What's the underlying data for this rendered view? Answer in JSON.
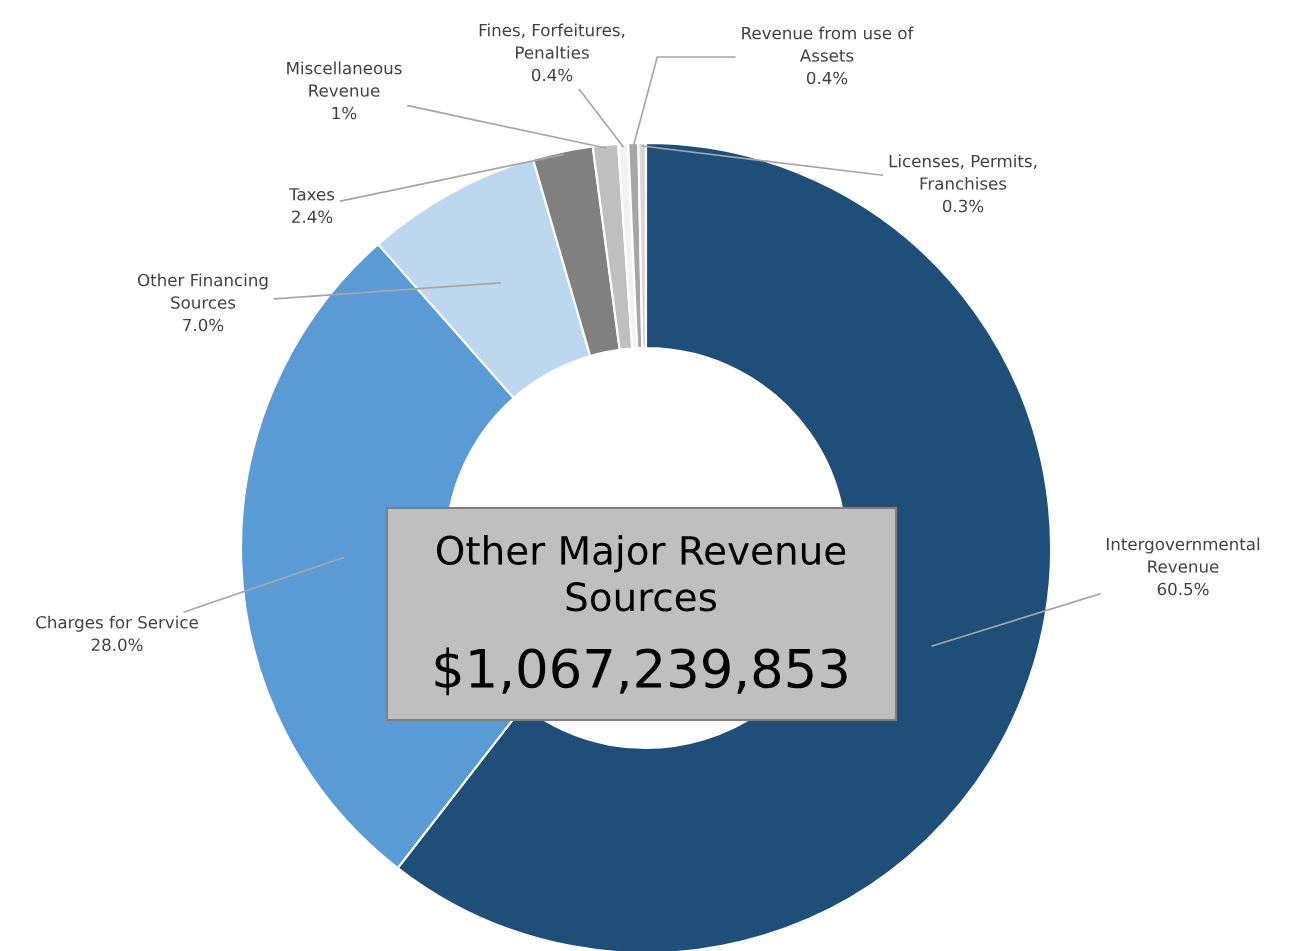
{
  "chart_data": {
    "type": "donut",
    "title": "Other Major Revenue\nSources",
    "subtitle": "$1,067,239,853",
    "categories": [
      "Intergovernmental\nRevenue",
      "Charges for Service",
      "Other Financing\nSources",
      "Taxes",
      "Miscellaneous\nRevenue",
      "Fines, Forfeitures,\nPenalties",
      "Revenue from use of\nAssets",
      "Licenses, Permits,\nFranchises"
    ],
    "values": [
      60.5,
      28.0,
      7.0,
      2.4,
      1,
      0.4,
      0.4,
      0.3
    ],
    "value_labels": [
      "60.5%",
      "28.0%",
      "7.0%",
      "2.4%",
      "1%",
      "0.4%",
      "0.4%",
      "0.3%"
    ],
    "colors": [
      "#1f4e79",
      "#5b9bd5",
      "#bdd7ee",
      "#808080",
      "#bfbfbf",
      "#f2f2f2",
      "#a6a6a6",
      "#d9d9d9"
    ],
    "legend": false
  }
}
